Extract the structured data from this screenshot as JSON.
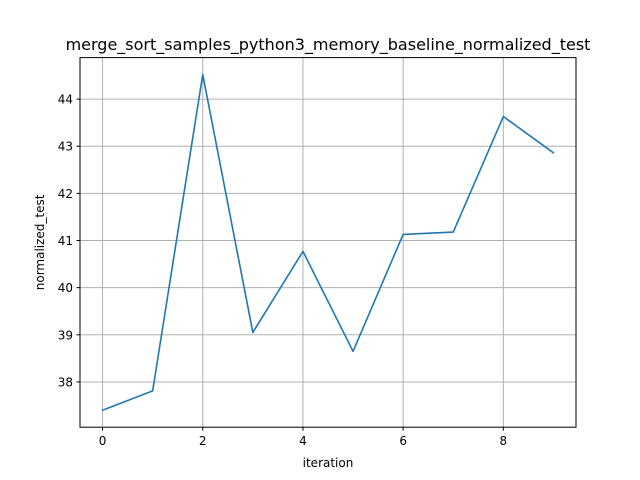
{
  "chart_data": {
    "type": "line",
    "title": "merge_sort_samples_python3_memory_baseline_normalized_test",
    "xlabel": "iteration",
    "ylabel": "normalized_test",
    "xlim": [
      -0.45,
      9.45
    ],
    "ylim": [
      37.04,
      44.88
    ],
    "xticks": [
      0,
      2,
      4,
      6,
      8
    ],
    "yticks": [
      38,
      39,
      40,
      41,
      42,
      43,
      44
    ],
    "grid": true,
    "series": [
      {
        "color": "#1f77b4",
        "x": [
          0,
          1,
          2,
          3,
          4,
          5,
          6,
          7,
          8,
          9
        ],
        "y": [
          37.4,
          37.81,
          44.52,
          39.05,
          40.77,
          38.65,
          41.13,
          41.18,
          43.63,
          42.86
        ]
      }
    ]
  }
}
